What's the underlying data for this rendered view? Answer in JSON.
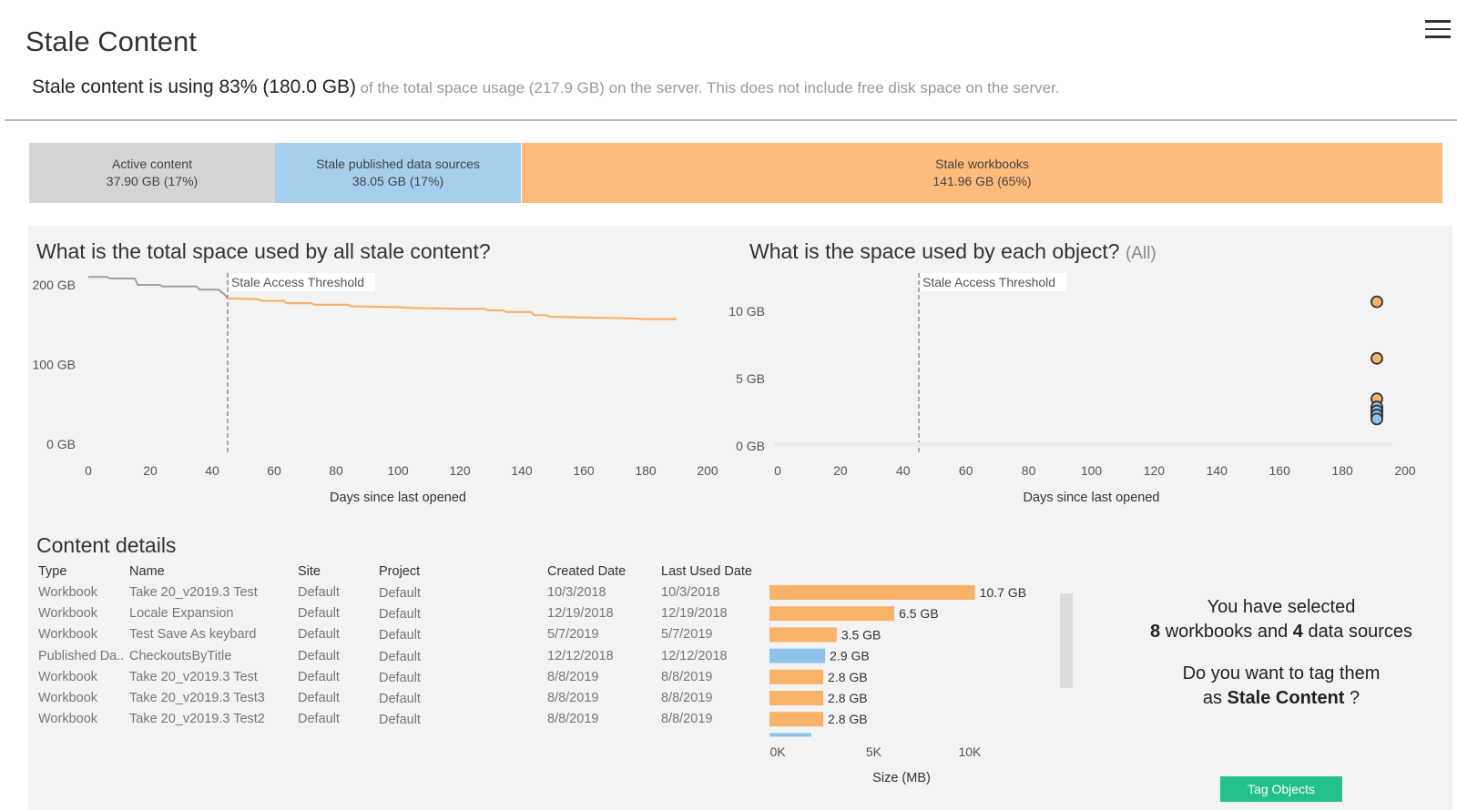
{
  "title": "Stale Content",
  "summary": {
    "main": "Stale content is using 83% (180.0 GB)",
    "sub": "of the total space usage (217.9 GB) on the server. This does not include free disk space on the server."
  },
  "breakdown": [
    {
      "label": "Active content",
      "value": "37.90 GB (17%)",
      "share": 17,
      "color": "#d4d4d4"
    },
    {
      "label": "Stale published data sources",
      "value": "38.05 GB (17%)",
      "share": 17,
      "color": "#a6cfee"
    },
    {
      "label": "Stale workbooks",
      "value": "141.96 GB (65%)",
      "share": 65,
      "color": "#ffbb7c"
    }
  ],
  "colors": {
    "active": "#a0a0a0",
    "stale": "#f8b26a",
    "datasource": "#8ec4ea",
    "tag_button": "#24c08c"
  },
  "left_chart": {
    "title": "What is the total space used by all stale content?",
    "threshold_label": "Stale  Access Threshold",
    "xlabel": "Days since last opened",
    "x_ticks": [
      "0",
      "20",
      "40",
      "60",
      "80",
      "100",
      "120",
      "140",
      "160",
      "180",
      "200"
    ],
    "y_ticks": [
      "200 GB",
      "100 GB",
      "0 GB"
    ]
  },
  "right_chart": {
    "title": "What is the space used by each object?",
    "filter": "(All)",
    "threshold_label": "Stale  Access Threshold",
    "xlabel": "Days since last opened",
    "x_ticks": [
      "0",
      "20",
      "40",
      "60",
      "80",
      "100",
      "120",
      "140",
      "160",
      "180",
      "200"
    ],
    "y_ticks": [
      "10 GB",
      "5 GB",
      "0 GB"
    ]
  },
  "chart_data": [
    {
      "type": "line",
      "title": "What is the total space used by all stale content?",
      "xlabel": "Days since last opened",
      "ylabel": "",
      "xlim": [
        0,
        200
      ],
      "ylim": [
        0,
        217
      ],
      "threshold_x": 45,
      "x": [
        0,
        6,
        7,
        15,
        16,
        23,
        24,
        35,
        36,
        42,
        44,
        45,
        55,
        56,
        63,
        64,
        72,
        73,
        84,
        85,
        100,
        105,
        120,
        128,
        129,
        134,
        135,
        143,
        144,
        148,
        149,
        160,
        175,
        180,
        190
      ],
      "y": [
        210,
        210,
        208,
        208,
        200,
        200,
        198,
        198,
        194,
        194,
        188,
        183,
        182,
        180,
        180,
        177,
        177,
        175,
        175,
        173,
        172,
        171,
        170,
        170,
        168,
        168,
        166,
        166,
        162,
        162,
        160,
        159,
        158,
        157,
        157
      ],
      "active_until_x": 45
    },
    {
      "type": "scatter",
      "title": "What is the space used by each object?",
      "xlabel": "Days since last opened",
      "ylim": [
        0,
        12
      ],
      "xlim": [
        0,
        200
      ],
      "threshold_x": 45,
      "series": [
        {
          "name": "Workbook",
          "points": [
            [
              191,
              10.7
            ],
            [
              191,
              6.5
            ],
            [
              191,
              3.5
            ],
            [
              191,
              2.8
            ],
            [
              191,
              2.8
            ],
            [
              191,
              2.8
            ],
            [
              191,
              2.5
            ],
            [
              191,
              2.2
            ]
          ]
        },
        {
          "name": "Published Data Source",
          "points": [
            [
              191,
              2.9
            ],
            [
              191,
              2.6
            ],
            [
              191,
              2.3
            ],
            [
              191,
              2.0
            ]
          ]
        }
      ]
    },
    {
      "type": "bar",
      "orientation": "horizontal",
      "xlabel": "Size (MB)",
      "x_ticks": [
        "0K",
        "5K",
        "10K"
      ],
      "xlim": [
        0,
        11000
      ],
      "categories": [
        "Take 20_v2019.3 Test",
        "Locale Expansion",
        "Test Save As keybard",
        "CheckoutsByTitle",
        "Take 20_v2019.3 Test",
        "Take 20_v2019.3 Test3",
        "Take 20_v2019.3 Test2"
      ],
      "values": [
        10700,
        6500,
        3500,
        2900,
        2800,
        2800,
        2800
      ],
      "value_labels": [
        "10.7 GB",
        "6.5 GB",
        "3.5 GB",
        "2.9 GB",
        "2.8 GB",
        "2.8 GB",
        "2.8 GB"
      ]
    }
  ],
  "details": {
    "title": "Content details",
    "columns": [
      "Type",
      "Name",
      "Site",
      "Project",
      "Created Date",
      "Last Used Date"
    ],
    "rows": [
      {
        "type": "Workbook",
        "name": "Take 20_v2019.3 Test",
        "site": "Default",
        "project": "Default",
        "created": "10/3/2018",
        "last_used": "10/3/2018",
        "size_mb": 10700,
        "size_label": "10.7 GB",
        "kind": "workbook"
      },
      {
        "type": "Workbook",
        "name": "Locale Expansion",
        "site": "Default",
        "project": "Default",
        "created": "12/19/2018",
        "last_used": "12/19/2018",
        "size_mb": 6500,
        "size_label": "6.5 GB",
        "kind": "workbook"
      },
      {
        "type": "Workbook",
        "name": "Test Save As keybard",
        "site": "Default",
        "project": "Default",
        "created": "5/7/2019",
        "last_used": "5/7/2019",
        "size_mb": 3500,
        "size_label": "3.5 GB",
        "kind": "workbook"
      },
      {
        "type": "Published Da..",
        "name": "CheckoutsByTitle",
        "site": "Default",
        "project": "Default",
        "created": "12/12/2018",
        "last_used": "12/12/2018",
        "size_mb": 2900,
        "size_label": "2.9 GB",
        "kind": "datasource"
      },
      {
        "type": "Workbook",
        "name": "Take 20_v2019.3 Test",
        "site": "Default",
        "project": "Default",
        "created": "8/8/2019",
        "last_used": "8/8/2019",
        "size_mb": 2800,
        "size_label": "2.8 GB",
        "kind": "workbook"
      },
      {
        "type": "Workbook",
        "name": "Take 20_v2019.3 Test3",
        "site": "Default",
        "project": "Default",
        "created": "8/8/2019",
        "last_used": "8/8/2019",
        "size_mb": 2800,
        "size_label": "2.8 GB",
        "kind": "workbook"
      },
      {
        "type": "Workbook",
        "name": "Take 20_v2019.3 Test2",
        "site": "Default",
        "project": "Default",
        "created": "8/8/2019",
        "last_used": "8/8/2019",
        "size_mb": 2800,
        "size_label": "2.8 GB",
        "kind": "workbook"
      }
    ],
    "size_axis_label": "Size (MB)",
    "size_ticks": [
      "0K",
      "5K",
      "10K"
    ]
  },
  "selection": {
    "line1": "You have selected",
    "workbook_count": "8",
    "workbooks_text": " workbooks and ",
    "datasource_count": "4",
    "datasources_text": " data sources",
    "question_prefix": "Do you want to tag them",
    "question_as": "as ",
    "tag_name": "Stale Content",
    "question_suffix": " ?",
    "button_label": "Tag Objects"
  }
}
